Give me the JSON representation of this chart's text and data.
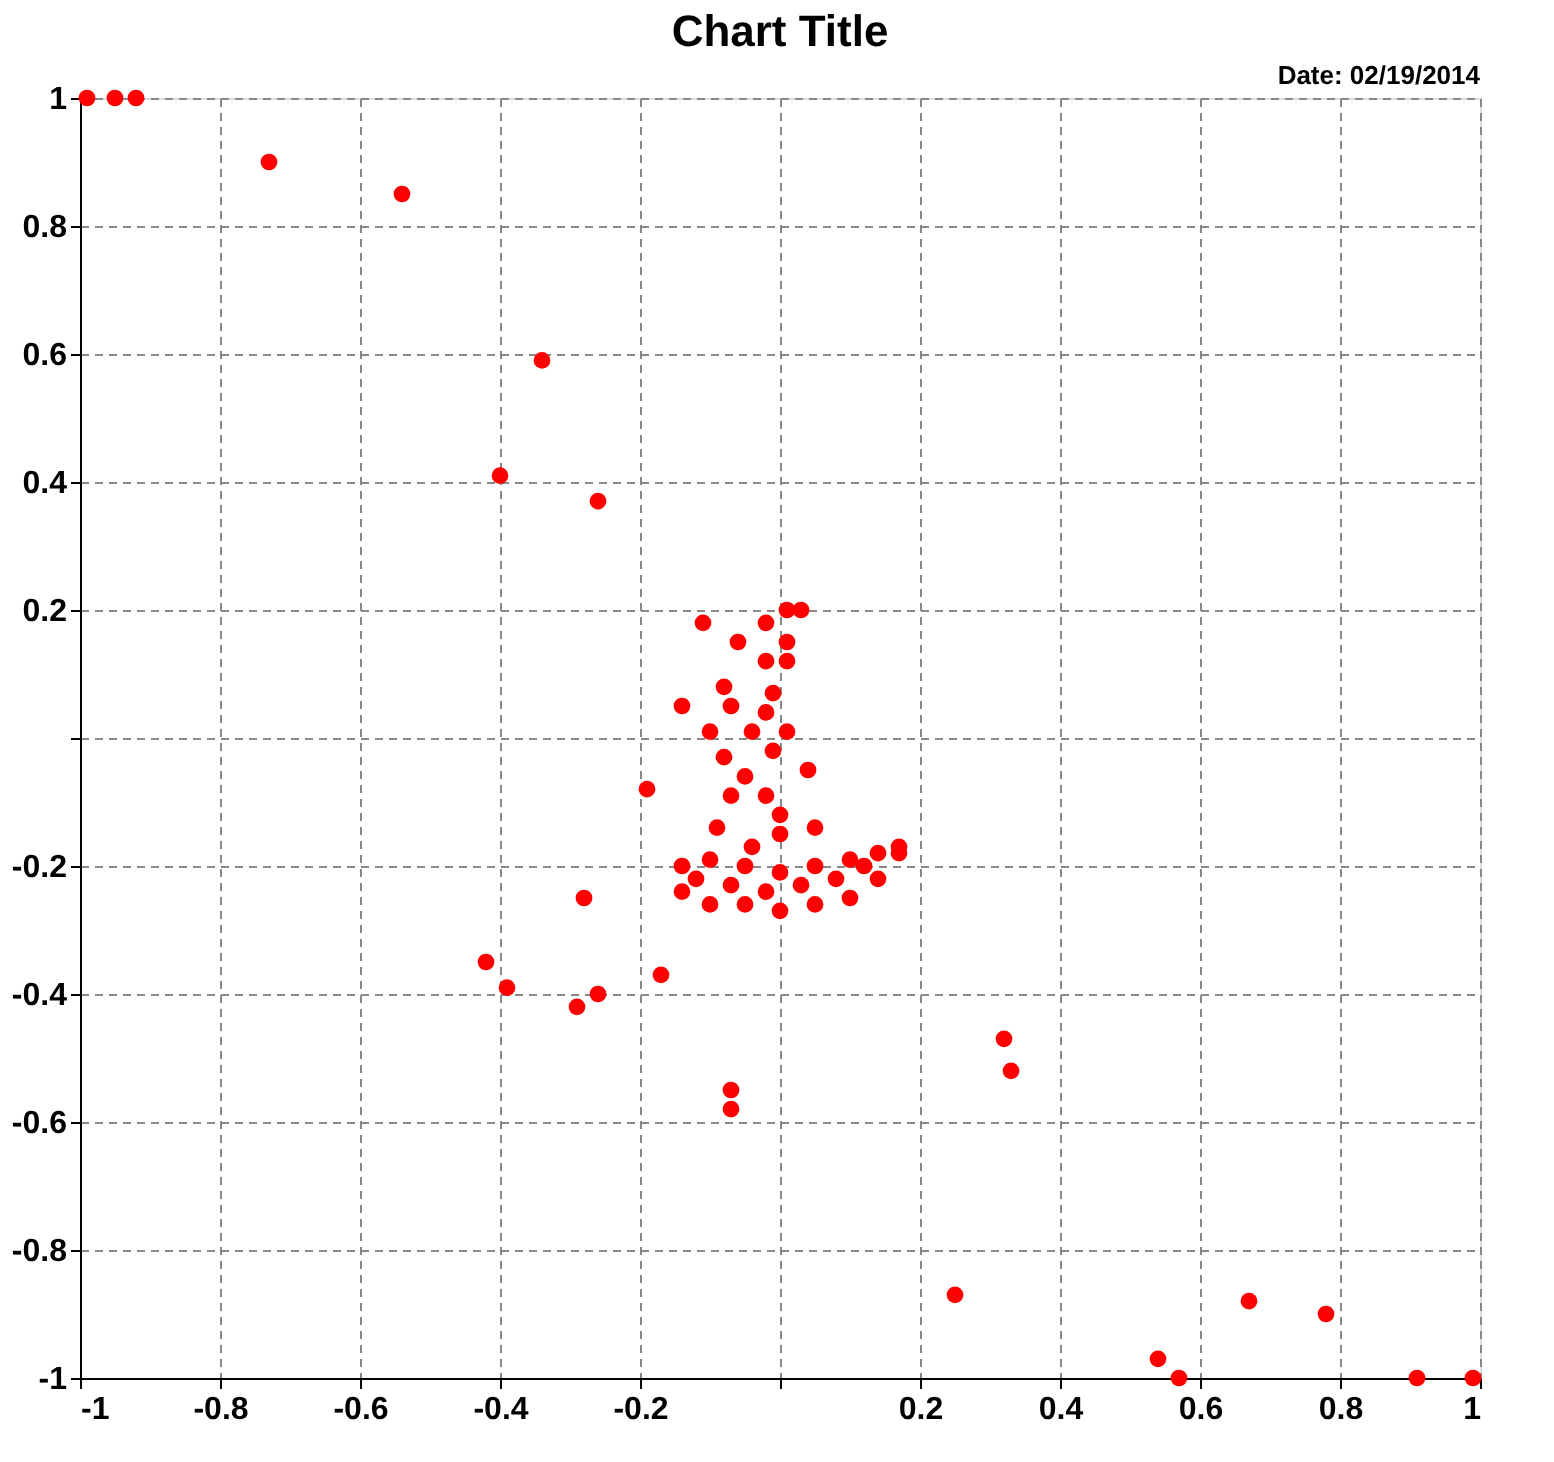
{
  "chart_data": {
    "type": "scatter",
    "title": "Chart Title",
    "annotations": [
      "Date: 02/19/2014"
    ],
    "xlim": [
      -1,
      1
    ],
    "ylim": [
      -1,
      1
    ],
    "xticks": [
      -1,
      -0.8,
      -0.6,
      -0.4,
      -0.2,
      {
        "value": 0,
        "label": null
      },
      0.2,
      0.4,
      0.6,
      0.8,
      1
    ],
    "yticks": [
      -1,
      -0.8,
      -0.6,
      -0.4,
      -0.2,
      {
        "value": 0,
        "label": null
      },
      0.2,
      0.4,
      0.6,
      0.8,
      1
    ],
    "grid": true,
    "marker": "circle",
    "series": [
      {
        "color": "#ff0000",
        "x": [
          -0.99,
          -0.95,
          -0.92,
          -0.73,
          -0.54,
          -0.34,
          -0.4,
          -0.26,
          -0.19,
          -0.11,
          -0.28,
          -0.42,
          -0.39,
          -0.29,
          -0.26,
          -0.17,
          -0.07,
          -0.07,
          0.32,
          0.33,
          0.25,
          0.54,
          0.57,
          0.67,
          0.78,
          0.91,
          0.99,
          0.01,
          0.03,
          -0.02,
          0.01,
          -0.06,
          -0.02,
          0.01,
          -0.08,
          -0.01,
          -0.14,
          -0.07,
          -0.02,
          -0.1,
          -0.04,
          0.01,
          -0.08,
          -0.01,
          0.04,
          -0.05,
          -0.07,
          -0.02,
          0.0,
          -0.09,
          0.05,
          -0.04,
          0.0,
          -0.14,
          -0.1,
          -0.05,
          0.0,
          0.05,
          0.1,
          0.14,
          0.17,
          -0.14,
          -0.1,
          -0.05,
          0.0,
          0.05,
          0.1,
          0.14,
          0.17,
          -0.12,
          -0.07,
          -0.02,
          0.03,
          0.08,
          0.12
        ],
        "values": [
          1.0,
          1.0,
          1.0,
          0.9,
          0.85,
          0.59,
          0.41,
          0.37,
          -0.08,
          0.18,
          -0.25,
          -0.35,
          -0.39,
          -0.42,
          -0.4,
          -0.37,
          -0.55,
          -0.58,
          -0.47,
          -0.52,
          -0.87,
          -0.97,
          -1.0,
          -0.88,
          -0.9,
          -1.0,
          -1.0,
          0.2,
          0.2,
          0.18,
          0.15,
          0.15,
          0.12,
          0.12,
          0.08,
          0.07,
          0.05,
          0.05,
          0.04,
          0.01,
          0.01,
          0.01,
          -0.03,
          -0.02,
          -0.05,
          -0.06,
          -0.09,
          -0.09,
          -0.12,
          -0.14,
          -0.14,
          -0.17,
          -0.15,
          -0.2,
          -0.19,
          -0.2,
          -0.21,
          -0.2,
          -0.19,
          -0.18,
          -0.17,
          -0.24,
          -0.26,
          -0.26,
          -0.27,
          -0.26,
          -0.25,
          -0.22,
          -0.18,
          -0.22,
          -0.23,
          -0.24,
          -0.23,
          -0.22,
          -0.2
        ]
      }
    ]
  }
}
